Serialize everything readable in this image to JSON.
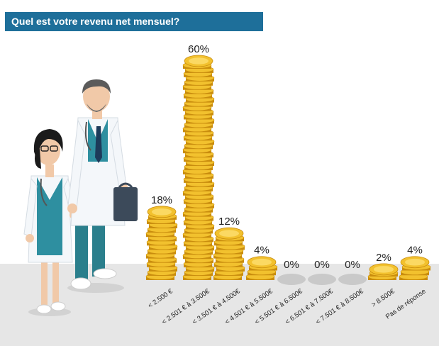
{
  "title": "Quel est votre revenu net mensuel?",
  "colors": {
    "banner": "#1e6f9a",
    "coin": "#f2c12e",
    "coin_dark": "#c98d0e",
    "coin_light": "#ffe27a",
    "empty_slot": "#c9c9c9",
    "floor": "#e6e6e6"
  },
  "illustration": {
    "figures": [
      "female-doctor",
      "male-doctor-with-briefcase"
    ]
  },
  "chart_data": {
    "type": "bar",
    "categories": [
      "< 2.500 €",
      "< 2.501 € à 3.500€",
      "< 3.501 € à 4.500€",
      "< 4.501 € à 5.500€",
      "< 5.501 € à 6.500€",
      "< 6.501 € à 7.500€",
      "< 7.501 € à 8.500€",
      "> 8.500€",
      "Pas de réponse"
    ],
    "values": [
      18,
      60,
      12,
      4,
      0,
      0,
      0,
      2,
      4
    ],
    "value_labels": [
      "18%",
      "60%",
      "12%",
      "4%",
      "0%",
      "0%",
      "0%",
      "2%",
      "4%"
    ],
    "unit": "%",
    "ylim": [
      0,
      60
    ]
  }
}
